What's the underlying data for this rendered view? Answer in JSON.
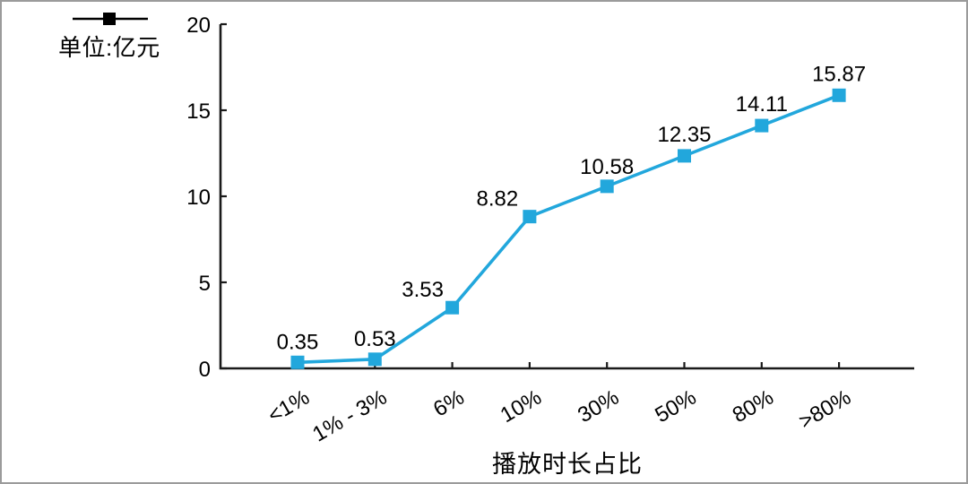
{
  "legend": {
    "label": "单位:亿元"
  },
  "chart_data": {
    "type": "line",
    "title": "",
    "xlabel": "播放时长占比",
    "ylabel": "",
    "unit_label": "单位:亿元",
    "categories": [
      "<1%",
      "1% - 3%",
      "6%",
      "10%",
      "30%",
      "50%",
      "80%",
      ">80%"
    ],
    "series": [
      {
        "name": "单位:亿元",
        "values": [
          0.35,
          0.53,
          3.53,
          8.82,
          10.58,
          12.35,
          14.11,
          15.87
        ],
        "color": "#22A7DC",
        "marker": "square"
      }
    ],
    "point_labels": [
      "0.35",
      "0.53",
      "3.53",
      "8.82",
      "10.58",
      "12.35",
      "14.11",
      "15.87"
    ],
    "y_ticks": [
      "0",
      "5",
      "10",
      "15",
      "20"
    ],
    "ylim": [
      0,
      20
    ],
    "grid": false,
    "legend_position": "top-left",
    "colors": {
      "line": "#22A7DC",
      "axis": "#1a1a1a",
      "text": "#000000",
      "frame_border": "#9b9b9b"
    }
  }
}
